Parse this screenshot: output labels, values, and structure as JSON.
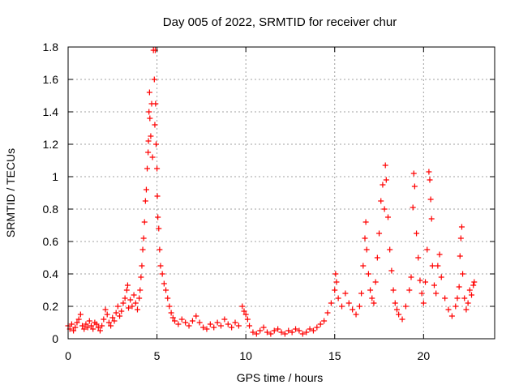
{
  "chart_data": {
    "type": "scatter",
    "title": "Day 005 of 2022, SRMTID for receiver chur",
    "xlabel": "GPS time / hours",
    "ylabel": "SRMTID / TECUs",
    "xlim": [
      0,
      24
    ],
    "ylim": [
      0,
      1.8
    ],
    "xticks": [
      0,
      5,
      10,
      15,
      20
    ],
    "xtick_labels": [
      "0",
      "5",
      "10",
      "15",
      "20"
    ],
    "yticks": [
      0,
      0.2,
      0.4,
      0.6,
      0.8,
      1,
      1.2,
      1.4,
      1.6,
      1.8
    ],
    "ytick_labels": [
      "0",
      "0.2",
      "0.4",
      "0.6",
      "0.8",
      "1",
      "1.2",
      "1.4",
      "1.6",
      "1.8"
    ],
    "grid": true,
    "marker": "+",
    "marker_color": "#ff0000",
    "series": [
      {
        "name": "SRMTID",
        "points": [
          [
            0.0,
            0.08
          ],
          [
            0.1,
            0.06
          ],
          [
            0.2,
            0.09
          ],
          [
            0.3,
            0.05
          ],
          [
            0.4,
            0.07
          ],
          [
            0.5,
            0.1
          ],
          [
            0.6,
            0.12
          ],
          [
            0.7,
            0.15
          ],
          [
            0.8,
            0.08
          ],
          [
            0.9,
            0.06
          ],
          [
            1.0,
            0.09
          ],
          [
            1.1,
            0.07
          ],
          [
            1.2,
            0.11
          ],
          [
            1.3,
            0.08
          ],
          [
            1.4,
            0.06
          ],
          [
            1.5,
            0.1
          ],
          [
            1.6,
            0.09
          ],
          [
            1.7,
            0.07
          ],
          [
            1.8,
            0.05
          ],
          [
            1.9,
            0.08
          ],
          [
            2.0,
            0.12
          ],
          [
            2.1,
            0.18
          ],
          [
            2.2,
            0.15
          ],
          [
            2.3,
            0.1
          ],
          [
            2.4,
            0.08
          ],
          [
            2.5,
            0.13
          ],
          [
            2.6,
            0.11
          ],
          [
            2.7,
            0.16
          ],
          [
            2.8,
            0.2
          ],
          [
            2.9,
            0.14
          ],
          [
            3.0,
            0.17
          ],
          [
            3.1,
            0.22
          ],
          [
            3.2,
            0.25
          ],
          [
            3.3,
            0.3
          ],
          [
            3.35,
            0.33
          ],
          [
            3.4,
            0.19
          ],
          [
            3.5,
            0.24
          ],
          [
            3.6,
            0.2
          ],
          [
            3.7,
            0.27
          ],
          [
            3.8,
            0.22
          ],
          [
            3.9,
            0.18
          ],
          [
            4.0,
            0.25
          ],
          [
            4.05,
            0.3
          ],
          [
            4.1,
            0.38
          ],
          [
            4.15,
            0.45
          ],
          [
            4.2,
            0.55
          ],
          [
            4.25,
            0.62
          ],
          [
            4.3,
            0.72
          ],
          [
            4.35,
            0.85
          ],
          [
            4.4,
            0.92
          ],
          [
            4.45,
            1.05
          ],
          [
            4.5,
            1.15
          ],
          [
            4.52,
            1.22
          ],
          [
            4.55,
            1.4
          ],
          [
            4.58,
            1.52
          ],
          [
            4.6,
            1.36
          ],
          [
            4.65,
            1.25
          ],
          [
            4.7,
            1.45
          ],
          [
            4.75,
            1.12
          ],
          [
            4.8,
            1.78
          ],
          [
            4.85,
            1.6
          ],
          [
            4.88,
            1.32
          ],
          [
            4.9,
            1.78
          ],
          [
            4.92,
            1.45
          ],
          [
            4.95,
            1.2
          ],
          [
            5.0,
            1.05
          ],
          [
            5.02,
            0.88
          ],
          [
            5.05,
            0.75
          ],
          [
            5.1,
            0.68
          ],
          [
            5.15,
            0.55
          ],
          [
            5.2,
            0.45
          ],
          [
            5.3,
            0.4
          ],
          [
            5.4,
            0.34
          ],
          [
            5.5,
            0.3
          ],
          [
            5.6,
            0.25
          ],
          [
            5.7,
            0.2
          ],
          [
            5.8,
            0.16
          ],
          [
            5.9,
            0.13
          ],
          [
            6.0,
            0.11
          ],
          [
            6.2,
            0.09
          ],
          [
            6.4,
            0.12
          ],
          [
            6.6,
            0.1
          ],
          [
            6.8,
            0.08
          ],
          [
            7.0,
            0.11
          ],
          [
            7.2,
            0.14
          ],
          [
            7.4,
            0.1
          ],
          [
            7.6,
            0.07
          ],
          [
            7.8,
            0.06
          ],
          [
            8.0,
            0.09
          ],
          [
            8.2,
            0.07
          ],
          [
            8.4,
            0.1
          ],
          [
            8.6,
            0.08
          ],
          [
            8.8,
            0.12
          ],
          [
            9.0,
            0.09
          ],
          [
            9.2,
            0.07
          ],
          [
            9.4,
            0.1
          ],
          [
            9.6,
            0.08
          ],
          [
            9.8,
            0.2
          ],
          [
            9.9,
            0.17
          ],
          [
            10.0,
            0.15
          ],
          [
            10.1,
            0.12
          ],
          [
            10.2,
            0.08
          ],
          [
            10.4,
            0.04
          ],
          [
            10.6,
            0.03
          ],
          [
            10.8,
            0.05
          ],
          [
            11.0,
            0.07
          ],
          [
            11.2,
            0.04
          ],
          [
            11.4,
            0.03
          ],
          [
            11.6,
            0.05
          ],
          [
            11.8,
            0.06
          ],
          [
            12.0,
            0.04
          ],
          [
            12.2,
            0.03
          ],
          [
            12.4,
            0.05
          ],
          [
            12.6,
            0.04
          ],
          [
            12.8,
            0.06
          ],
          [
            13.0,
            0.05
          ],
          [
            13.2,
            0.03
          ],
          [
            13.4,
            0.04
          ],
          [
            13.6,
            0.06
          ],
          [
            13.8,
            0.05
          ],
          [
            14.0,
            0.07
          ],
          [
            14.2,
            0.09
          ],
          [
            14.4,
            0.11
          ],
          [
            14.6,
            0.16
          ],
          [
            14.8,
            0.22
          ],
          [
            15.0,
            0.3
          ],
          [
            15.05,
            0.4
          ],
          [
            15.1,
            0.35
          ],
          [
            15.2,
            0.25
          ],
          [
            15.4,
            0.2
          ],
          [
            15.6,
            0.28
          ],
          [
            15.8,
            0.22
          ],
          [
            16.0,
            0.18
          ],
          [
            16.2,
            0.15
          ],
          [
            16.4,
            0.2
          ],
          [
            16.5,
            0.28
          ],
          [
            16.6,
            0.45
          ],
          [
            16.7,
            0.62
          ],
          [
            16.75,
            0.72
          ],
          [
            16.8,
            0.55
          ],
          [
            16.9,
            0.4
          ],
          [
            17.0,
            0.3
          ],
          [
            17.1,
            0.25
          ],
          [
            17.2,
            0.22
          ],
          [
            17.3,
            0.35
          ],
          [
            17.4,
            0.5
          ],
          [
            17.5,
            0.65
          ],
          [
            17.6,
            0.85
          ],
          [
            17.7,
            0.95
          ],
          [
            17.8,
            0.8
          ],
          [
            17.85,
            1.07
          ],
          [
            17.9,
            0.98
          ],
          [
            18.0,
            0.75
          ],
          [
            18.1,
            0.55
          ],
          [
            18.2,
            0.42
          ],
          [
            18.3,
            0.3
          ],
          [
            18.4,
            0.22
          ],
          [
            18.5,
            0.18
          ],
          [
            18.6,
            0.15
          ],
          [
            18.8,
            0.12
          ],
          [
            19.0,
            0.2
          ],
          [
            19.2,
            0.3
          ],
          [
            19.3,
            0.38
          ],
          [
            19.4,
            0.81
          ],
          [
            19.45,
            1.02
          ],
          [
            19.5,
            0.94
          ],
          [
            19.6,
            0.65
          ],
          [
            19.7,
            0.5
          ],
          [
            19.8,
            0.36
          ],
          [
            19.9,
            0.28
          ],
          [
            20.0,
            0.22
          ],
          [
            20.1,
            0.35
          ],
          [
            20.2,
            0.55
          ],
          [
            20.3,
            1.03
          ],
          [
            20.35,
            0.98
          ],
          [
            20.4,
            0.86
          ],
          [
            20.45,
            0.74
          ],
          [
            20.5,
            0.45
          ],
          [
            20.6,
            0.33
          ],
          [
            20.7,
            0.28
          ],
          [
            20.8,
            0.45
          ],
          [
            20.9,
            0.52
          ],
          [
            21.0,
            0.38
          ],
          [
            21.2,
            0.25
          ],
          [
            21.4,
            0.18
          ],
          [
            21.6,
            0.14
          ],
          [
            21.8,
            0.2
          ],
          [
            21.9,
            0.25
          ],
          [
            22.0,
            0.32
          ],
          [
            22.05,
            0.51
          ],
          [
            22.1,
            0.62
          ],
          [
            22.15,
            0.69
          ],
          [
            22.2,
            0.4
          ],
          [
            22.3,
            0.25
          ],
          [
            22.4,
            0.18
          ],
          [
            22.5,
            0.22
          ],
          [
            22.6,
            0.3
          ],
          [
            22.7,
            0.27
          ],
          [
            22.8,
            0.33
          ],
          [
            22.85,
            0.35
          ]
        ]
      }
    ]
  }
}
